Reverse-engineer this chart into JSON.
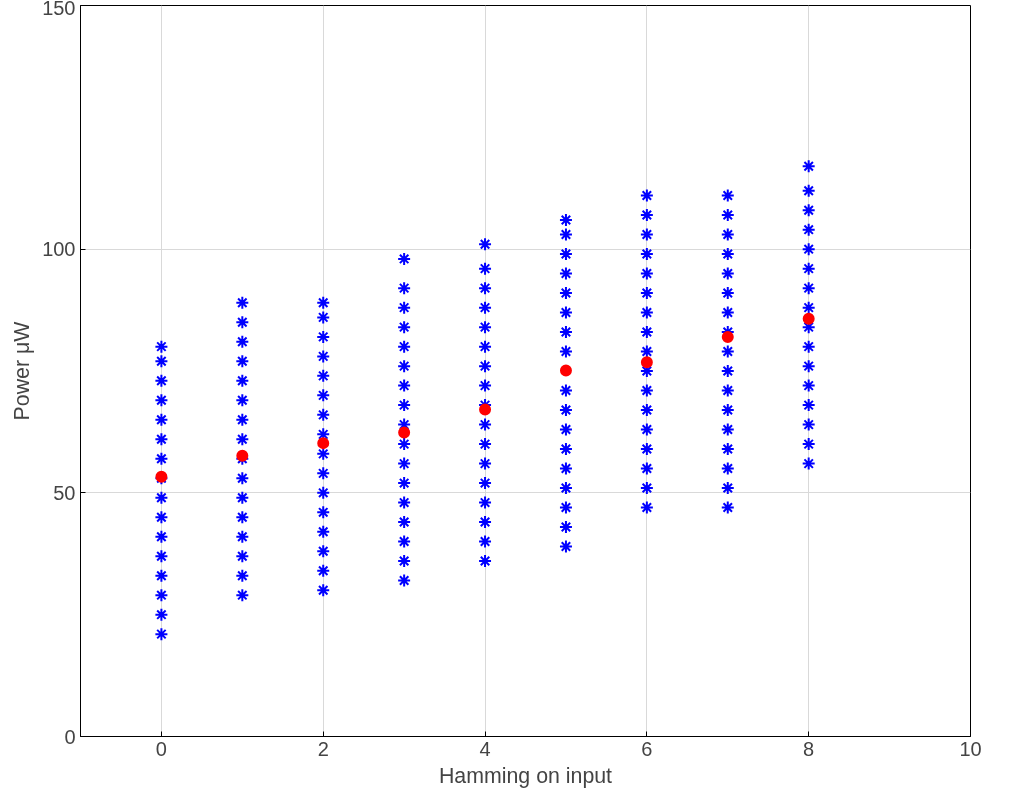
{
  "chart_data": {
    "type": "scatter",
    "xlabel": "Hamming on input",
    "ylabel": "Power μW",
    "xlim": [
      -1,
      10
    ],
    "ylim": [
      0,
      150
    ],
    "xticks": [
      0,
      2,
      4,
      6,
      8,
      10
    ],
    "yticks": [
      0,
      50,
      100,
      150
    ],
    "grid": true,
    "series": [
      {
        "color": "#0000ff",
        "marker": "cross",
        "x": [
          0,
          0,
          0,
          0,
          0,
          0,
          0,
          0,
          0,
          0,
          0,
          0,
          0,
          0,
          0,
          0,
          1,
          1,
          1,
          1,
          1,
          1,
          1,
          1,
          1,
          1,
          1,
          1,
          1,
          1,
          1,
          1,
          2,
          2,
          2,
          2,
          2,
          2,
          2,
          2,
          2,
          2,
          2,
          2,
          2,
          2,
          2,
          2,
          3,
          3,
          3,
          3,
          3,
          3,
          3,
          3,
          3,
          3,
          3,
          3,
          3,
          3,
          3,
          3,
          3,
          4,
          4,
          4,
          4,
          4,
          4,
          4,
          4,
          4,
          4,
          4,
          4,
          4,
          4,
          4,
          4,
          4,
          5,
          5,
          5,
          5,
          5,
          5,
          5,
          5,
          5,
          5,
          5,
          5,
          5,
          5,
          5,
          5,
          5,
          6,
          6,
          6,
          6,
          6,
          6,
          6,
          6,
          6,
          6,
          6,
          6,
          6,
          6,
          6,
          6,
          6,
          7,
          7,
          7,
          7,
          7,
          7,
          7,
          7,
          7,
          7,
          7,
          7,
          7,
          7,
          7,
          7,
          7,
          8,
          8,
          8,
          8,
          8,
          8,
          8,
          8,
          8,
          8,
          8,
          8,
          8,
          8,
          8,
          8
        ],
        "values": [
          21,
          25,
          29,
          33,
          37,
          41,
          45,
          49,
          53,
          57,
          61,
          65,
          69,
          73,
          77,
          80,
          29,
          33,
          37,
          41,
          45,
          49,
          53,
          57,
          61,
          65,
          69,
          73,
          77,
          81,
          85,
          89,
          30,
          34,
          38,
          42,
          46,
          50,
          54,
          58,
          62,
          66,
          70,
          74,
          78,
          82,
          86,
          89,
          32,
          36,
          40,
          44,
          48,
          52,
          56,
          60,
          64,
          68,
          72,
          76,
          80,
          84,
          88,
          92,
          98,
          36,
          40,
          44,
          48,
          52,
          56,
          60,
          64,
          68,
          72,
          76,
          80,
          84,
          88,
          92,
          96,
          101,
          39,
          43,
          47,
          51,
          55,
          59,
          63,
          67,
          71,
          79,
          83,
          87,
          91,
          95,
          99,
          103,
          106,
          47,
          51,
          55,
          59,
          63,
          67,
          71,
          75,
          79,
          83,
          87,
          91,
          95,
          99,
          103,
          107,
          111,
          47,
          51,
          55,
          59,
          63,
          67,
          71,
          75,
          79,
          83,
          87,
          91,
          95,
          99,
          103,
          107,
          111,
          56,
          60,
          64,
          68,
          72,
          76,
          80,
          84,
          88,
          92,
          96,
          100,
          104,
          108,
          112,
          117
        ]
      },
      {
        "color": "#ff0000",
        "marker": "circle",
        "x": [
          0,
          1,
          2,
          3,
          4,
          5,
          6,
          7,
          8
        ],
        "values": [
          53.3,
          57.6,
          60.2,
          62.4,
          67.1,
          75.1,
          76.8,
          82.0,
          85.7
        ]
      }
    ]
  }
}
